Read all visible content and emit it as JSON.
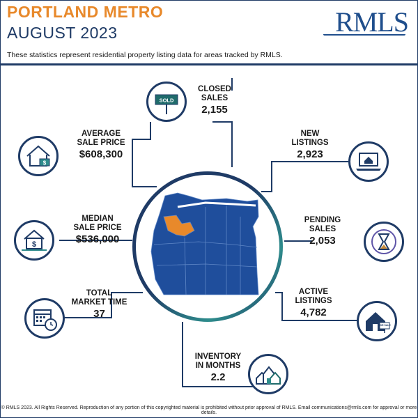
{
  "header": {
    "region": "PORTLAND METRO",
    "period": "AUGUST 2023",
    "logo_text": "RMLS",
    "subtitle": "These statistics represent residential property listing data for areas tracked by RMLS."
  },
  "stats": {
    "closed_sales": {
      "label_1": "CLOSED",
      "label_2": "SALES",
      "value": "2,155",
      "icon": "sold-sign-icon",
      "sign_text": "SOLD"
    },
    "average_sale_price": {
      "label_1": "AVERAGE",
      "label_2": "SALE PRICE",
      "value": "$608,300",
      "icon": "house-dollar-icon"
    },
    "new_listings": {
      "label_1": "NEW",
      "label_2": "LISTINGS",
      "value": "2,923",
      "icon": "laptop-house-icon"
    },
    "median_sale_price": {
      "label_1": "MEDIAN",
      "label_2": "SALE PRICE",
      "value": "$536,000",
      "icon": "house-dollar-fence-icon"
    },
    "pending_sales": {
      "label_1": "PENDING",
      "label_2": "SALES",
      "value": "2,053",
      "icon": "hourglass-icon"
    },
    "total_market_time": {
      "label_1": "TOTAL",
      "label_2": "MARKET TIME",
      "value": "37",
      "icon": "calendar-clock-icon"
    },
    "active_listings": {
      "label_1": "ACTIVE",
      "label_2": "LISTINGS",
      "value": "4,782",
      "icon": "house-for-sale-icon",
      "sign_text": "FOR SALE"
    },
    "inventory_in_months": {
      "label_1": "INVENTORY",
      "label_2": "IN MONTHS",
      "value": "2.2",
      "icon": "houses-icon"
    }
  },
  "map": {
    "icon": "oregon-map-icon",
    "region_color": "#1f4e9c",
    "highlight_color": "#e8892b"
  },
  "footer": {
    "text": "© RMLS 2023. All Rights Reserved. Reproduction of any portion of this copyrighted material is prohibited without prior approval of RMLS. Email communications@rmls.com for approval or more details."
  }
}
